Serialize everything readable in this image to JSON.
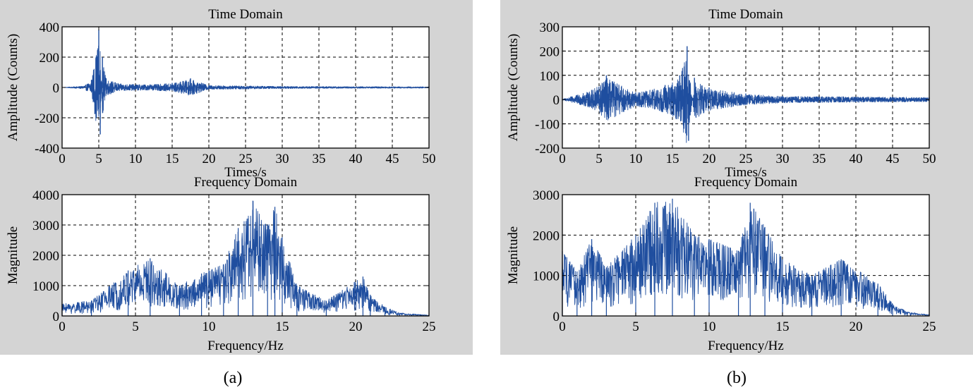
{
  "colors": {
    "panel_bg": "#d4d4d4",
    "plot_bg": "#ffffff",
    "trace": "#1f4e9f",
    "grid": "#000000"
  },
  "captions": [
    "(a)",
    "(b)"
  ],
  "chart_data": [
    {
      "type": "line",
      "panel": "(a)",
      "title": "Time Domain",
      "xlabel": "Times/s",
      "ylabel": "Amplitude (Counts)",
      "xlim": [
        0,
        50
      ],
      "ylim": [
        -400,
        400
      ],
      "xticks": [
        0,
        5,
        10,
        15,
        20,
        25,
        30,
        35,
        40,
        45,
        50
      ],
      "yticks": [
        -400,
        -200,
        0,
        200,
        400
      ],
      "grid": true,
      "series": [
        {
          "x": [
            0,
            3,
            4,
            5,
            5.2,
            5.5,
            6,
            8,
            12,
            15,
            17.5,
            20,
            30,
            50
          ],
          "y": [
            0,
            10,
            50,
            380,
            -310,
            200,
            60,
            25,
            20,
            30,
            60,
            15,
            8,
            5
          ]
        }
      ]
    },
    {
      "type": "line",
      "panel": "(a)",
      "title": "Frequency Domain",
      "xlabel": "Frequency/Hz",
      "ylabel": "Magnitude",
      "xlim": [
        0,
        25
      ],
      "ylim": [
        0,
        4000
      ],
      "xticks": [
        0,
        5,
        10,
        15,
        20,
        25
      ],
      "yticks": [
        0,
        1000,
        2000,
        3000,
        4000
      ],
      "grid": true,
      "series": [
        {
          "x": [
            0,
            2,
            4.5,
            6,
            8,
            9.5,
            11,
            12,
            13,
            14,
            14.5,
            15,
            16,
            18,
            20.5,
            21,
            22,
            23,
            25
          ],
          "y": [
            400,
            500,
            1500,
            1900,
            1000,
            1400,
            1700,
            2900,
            3800,
            3000,
            3600,
            2600,
            1000,
            500,
            1300,
            700,
            300,
            100,
            30
          ]
        }
      ]
    },
    {
      "type": "line",
      "panel": "(b)",
      "title": "Time Domain",
      "xlabel": "Times/s",
      "ylabel": "Amplitude (Counts)",
      "xlim": [
        0,
        50
      ],
      "ylim": [
        -200,
        300
      ],
      "xticks": [
        0,
        5,
        10,
        15,
        20,
        25,
        30,
        35,
        40,
        45,
        50
      ],
      "yticks": [
        -200,
        -100,
        0,
        100,
        200,
        300
      ],
      "grid": true,
      "series": [
        {
          "x": [
            0,
            4,
            6,
            10,
            14,
            16,
            17,
            17.2,
            18,
            20,
            25,
            30,
            50
          ],
          "y": [
            2,
            40,
            100,
            30,
            60,
            100,
            220,
            -170,
            90,
            50,
            25,
            15,
            10
          ]
        }
      ]
    },
    {
      "type": "line",
      "panel": "(b)",
      "title": "Frequency Domain",
      "xlabel": "Frequency/Hz",
      "ylabel": "Magnitude",
      "xlim": [
        0,
        25
      ],
      "ylim": [
        0,
        3000
      ],
      "xticks": [
        0,
        5,
        10,
        15,
        20,
        25
      ],
      "yticks": [
        0,
        1000,
        2000,
        3000
      ],
      "grid": true,
      "series": [
        {
          "x": [
            0,
            1,
            2,
            3,
            5,
            6.3,
            7.5,
            9,
            10,
            12,
            12.8,
            13.8,
            15,
            17,
            19,
            21.5,
            22.5,
            23.5,
            25
          ],
          "y": [
            1600,
            1100,
            1900,
            1200,
            2000,
            2800,
            2900,
            2000,
            1900,
            1600,
            2800,
            2200,
            1400,
            1000,
            1400,
            800,
            300,
            100,
            30
          ]
        }
      ]
    }
  ]
}
